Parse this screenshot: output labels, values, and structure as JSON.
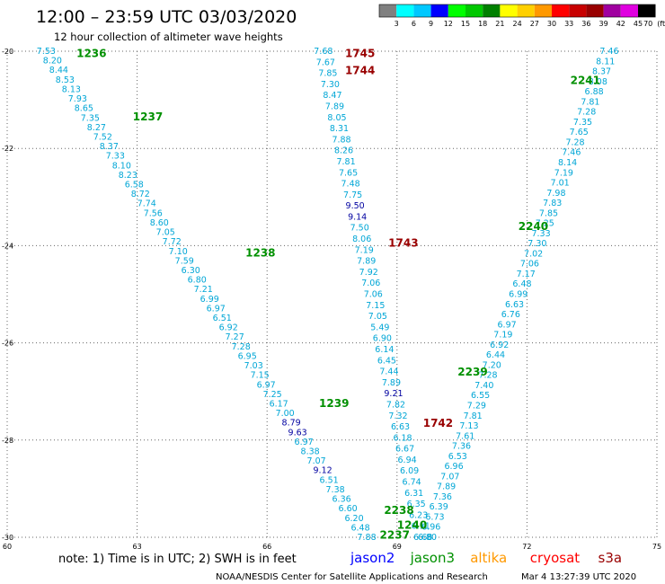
{
  "header": {
    "title": "12:00 – 23:59 UTC 03/03/2020",
    "subtitle": "12 hour collection of altimeter wave heights"
  },
  "colors": {
    "swh_cyan": "#00a6d6",
    "swh_navy": "#0000a0",
    "jason2": "#0000ff",
    "jason3": "#009000",
    "altika": "#ff9900",
    "cryosat": "#ff0000",
    "s3a": "#990000",
    "gridline": "#666666"
  },
  "color_scale": {
    "unit": "(ft)",
    "labels": [
      "3",
      "6",
      "9",
      "12",
      "15",
      "18",
      "21",
      "24",
      "27",
      "30",
      "33",
      "36",
      "39",
      "42",
      "45",
      "70"
    ],
    "colors": [
      "#808080",
      "#00ffff",
      "#00c8ff",
      "#0000ff",
      "#00ff00",
      "#00c800",
      "#008000",
      "#ffff00",
      "#ffd000",
      "#ff9900",
      "#ff0000",
      "#c80000",
      "#990000",
      "#a000a0",
      "#e000e0",
      "#000000"
    ]
  },
  "chart_data": {
    "type": "scatter",
    "title": "12:00 – 23:59 UTC 03/03/2020",
    "subtitle": "12 hour collection of altimeter wave heights",
    "xlim": [
      60,
      75
    ],
    "ylim": [
      -30,
      -20
    ],
    "x_ticks": [
      "60",
      "63",
      "66",
      "69",
      "72",
      "75"
    ],
    "y_ticks": [
      "-20",
      "-22",
      "-24",
      "-26",
      "-28",
      "-30"
    ],
    "grid": true,
    "tracks": [
      {
        "name": "track-1236-1240",
        "start": [
          60.9,
          -20.0
        ],
        "end": [
          68.3,
          -30.0
        ],
        "color": "#00a6d6",
        "values": [
          "7.53",
          "8.20",
          "8.44",
          "8.53",
          "8.13",
          "7.93",
          "8.65",
          "7.35",
          "8.27",
          "7.52",
          "8.37",
          "7.33",
          "8.10",
          "8.23",
          "6.58",
          "8.72",
          "7.74",
          "7.56",
          "8.60",
          "7.05",
          "7.72",
          "7.10",
          "7.59",
          "6.30",
          "6.80",
          "7.21",
          "6.99",
          "6.97",
          "6.51",
          "6.92",
          "7.27",
          "7.28",
          "6.95",
          "7.03",
          "7.15",
          "6.97",
          "7.25",
          "6.17",
          "7.00",
          "8.79",
          "9.63",
          "6.97",
          "8.38",
          "7.07",
          "9.12",
          "6.51",
          "7.38",
          "6.36",
          "6.60",
          "6.20",
          "6.48",
          "7.88"
        ],
        "highlight": {
          "8.79": "#0000a0",
          "9.63": "#0000a0",
          "9.12": "#0000a0"
        }
      },
      {
        "name": "track-1745-1742",
        "start": [
          67.3,
          -20.0
        ],
        "end": [
          69.6,
          -30.0
        ],
        "color": "#00a6d6",
        "values": [
          "7.68",
          "7.67",
          "7.85",
          "7.30",
          "8.47",
          "7.89",
          "8.05",
          "8.31",
          "7.88",
          "8.26",
          "7.81",
          "7.65",
          "7.48",
          "7.75",
          "9.50",
          "9.14",
          "7.50",
          "8.06",
          "7.19",
          "7.89",
          "7.92",
          "7.06",
          "7.06",
          "7.15",
          "7.05",
          "5.49",
          "6.90",
          "6.14",
          "6.45",
          "7.44",
          "7.89",
          "9.21",
          "7.82",
          "7.32",
          "6.63",
          "6.18",
          "6.67",
          "6.94",
          "6.09",
          "6.74",
          "6.31",
          "6.35",
          "6.23",
          "6.11",
          "6.68"
        ],
        "highlight": {
          "9.50": "#0000a0",
          "9.14": "#0000a0",
          "9.21": "#0000a0"
        }
      },
      {
        "name": "track-2241-2237",
        "start": [
          73.9,
          -20.0
        ],
        "end": [
          69.7,
          -30.0
        ],
        "color": "#00a6d6",
        "values": [
          "7.46",
          "8.11",
          "8.37",
          "8.08",
          "6.88",
          "7.81",
          "7.28",
          "7.35",
          "7.65",
          "7.28",
          "7.46",
          "8.14",
          "7.19",
          "7.01",
          "7.98",
          "7.83",
          "7.85",
          "7.25",
          "7.33",
          "7.30",
          "7.02",
          "7.06",
          "7.17",
          "6.48",
          "6.99",
          "6.63",
          "6.76",
          "6.97",
          "7.19",
          "6.92",
          "6.44",
          "7.20",
          "7.28",
          "7.40",
          "6.55",
          "7.29",
          "7.81",
          "7.13",
          "7.61",
          "7.36",
          "6.53",
          "6.96",
          "7.07",
          "7.89",
          "7.36",
          "6.39",
          "6.73",
          "6.96",
          "6.80"
        ],
        "highlight": {}
      }
    ],
    "time_labels": [
      {
        "text": "1236",
        "x": 61.6,
        "y": -20.05,
        "color": "#009000"
      },
      {
        "text": "1237",
        "x": 62.9,
        "y": -21.35,
        "color": "#009000"
      },
      {
        "text": "1238",
        "x": 65.5,
        "y": -24.15,
        "color": "#009000"
      },
      {
        "text": "1239",
        "x": 67.2,
        "y": -27.25,
        "color": "#009000"
      },
      {
        "text": "1240",
        "x": 69.0,
        "y": -29.75,
        "color": "#009000"
      },
      {
        "text": "1745",
        "x": 67.8,
        "y": -20.05,
        "color": "#990000"
      },
      {
        "text": "1744",
        "x": 67.8,
        "y": -20.4,
        "color": "#990000"
      },
      {
        "text": "1743",
        "x": 68.8,
        "y": -23.95,
        "color": "#990000"
      },
      {
        "text": "1742",
        "x": 69.6,
        "y": -27.65,
        "color": "#990000"
      },
      {
        "text": "2241",
        "x": 73.0,
        "y": -20.6,
        "color": "#009000"
      },
      {
        "text": "2240",
        "x": 71.8,
        "y": -23.6,
        "color": "#009000"
      },
      {
        "text": "2239",
        "x": 70.4,
        "y": -26.6,
        "color": "#009000"
      },
      {
        "text": "2238",
        "x": 68.7,
        "y": -29.45,
        "color": "#009000"
      },
      {
        "text": "2237",
        "x": 68.6,
        "y": -29.95,
        "color": "#009000"
      }
    ]
  },
  "legend": {
    "note": "note: 1) Time is in UTC; 2) SWH is in feet",
    "satellites": [
      {
        "label": "jason2",
        "color": "#0000ff"
      },
      {
        "label": "jason3",
        "color": "#009000"
      },
      {
        "label": "altika",
        "color": "#ff9900"
      },
      {
        "label": "cryosat",
        "color": "#ff0000"
      },
      {
        "label": "s3a",
        "color": "#990000"
      }
    ]
  },
  "footer": {
    "credit": "NOAA/NESDIS Center for Satellite Applications and Research",
    "timestamp": "Mar  4 13:27:39 UTC 2020"
  }
}
